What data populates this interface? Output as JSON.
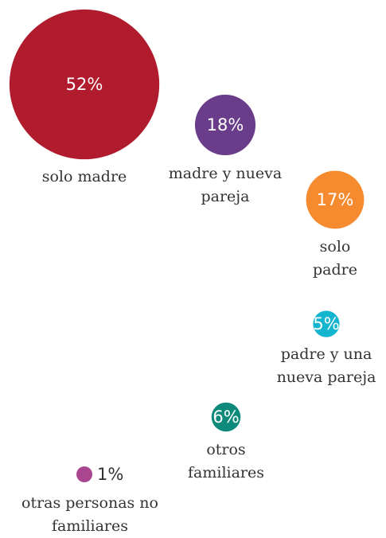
{
  "chart_data": {
    "type": "bubble",
    "categories": [
      "solo madre",
      "madre y nueva pareja",
      "solo padre",
      "padre y una nueva pareja",
      "otros familiares",
      "otras personas no familiares"
    ],
    "values": [
      52,
      18,
      17,
      5,
      6,
      1
    ],
    "value_labels": [
      "52%",
      "18%",
      "17%",
      "5%",
      "6%",
      "1%"
    ],
    "colors": [
      "#b01c2e",
      "#6a3d8a",
      "#f58a2f",
      "#14b5cf",
      "#0f8a7a",
      "#a9468f"
    ]
  }
}
